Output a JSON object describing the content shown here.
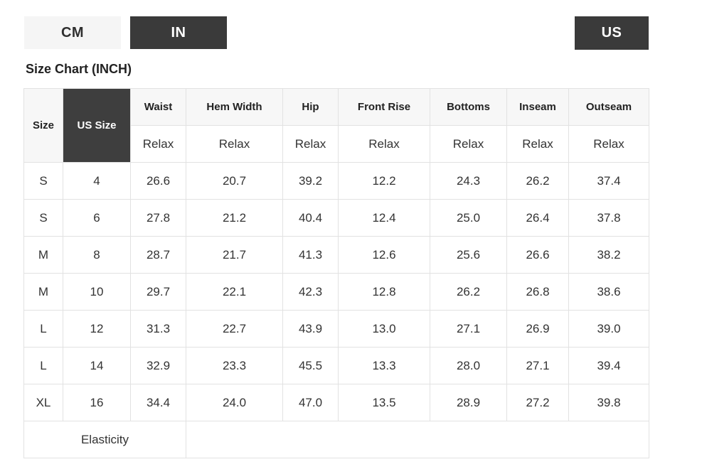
{
  "unit_toggle": {
    "cm_label": "CM",
    "in_label": "IN",
    "selected": "IN"
  },
  "sizing_toggle": {
    "us_label": "US",
    "selected": "US"
  },
  "title": "Size Chart (INCH)",
  "colors": {
    "accent_dark": "#3a3a3a",
    "dark_header_cell": "#3e3e3e",
    "header_bg": "#f7f7f7",
    "inactive_toggle_bg": "#f5f5f5",
    "border": "#e2e2e2",
    "text": "#333333"
  },
  "table": {
    "header": [
      "Size",
      "US Size",
      "Waist",
      "Hem Width",
      "Hip",
      "Front Rise",
      "Bottoms",
      "Inseam",
      "Outseam"
    ],
    "fit_values": [
      "Relax",
      "Relax",
      "Relax",
      "Relax",
      "Relax",
      "Relax",
      "Relax"
    ],
    "rows": [
      [
        "S",
        "4",
        "26.6",
        "20.7",
        "39.2",
        "12.2",
        "24.3",
        "26.2",
        "37.4"
      ],
      [
        "S",
        "6",
        "27.8",
        "21.2",
        "40.4",
        "12.4",
        "25.0",
        "26.4",
        "37.8"
      ],
      [
        "M",
        "8",
        "28.7",
        "21.7",
        "41.3",
        "12.6",
        "25.6",
        "26.6",
        "38.2"
      ],
      [
        "M",
        "10",
        "29.7",
        "22.1",
        "42.3",
        "12.8",
        "26.2",
        "26.8",
        "38.6"
      ],
      [
        "L",
        "12",
        "31.3",
        "22.7",
        "43.9",
        "13.0",
        "27.1",
        "26.9",
        "39.0"
      ],
      [
        "L",
        "14",
        "32.9",
        "23.3",
        "45.5",
        "13.3",
        "28.0",
        "27.1",
        "39.4"
      ],
      [
        "XL",
        "16",
        "34.4",
        "24.0",
        "47.0",
        "13.5",
        "28.9",
        "27.2",
        "39.8"
      ]
    ],
    "footer_label": "Elasticity",
    "footer_value": ""
  }
}
